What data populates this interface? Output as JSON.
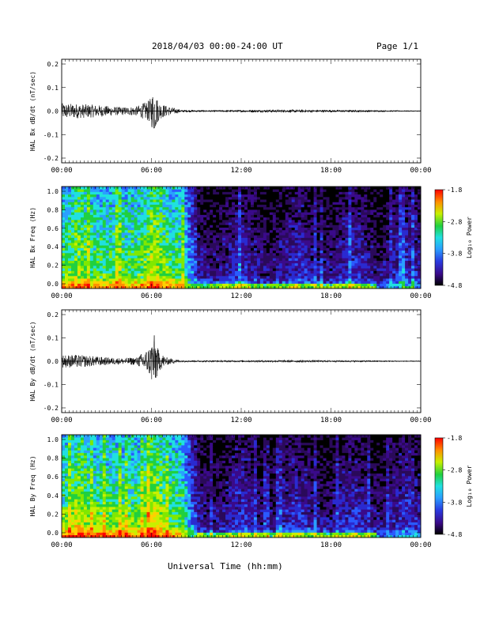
{
  "header": {
    "title": "2018/04/03  00:00-24:00 UT",
    "page": "Page 1/1"
  },
  "xaxis": {
    "label": "Universal Time (hh:mm)",
    "ticks": [
      "00:00",
      "06:00",
      "12:00",
      "18:00",
      "00:00"
    ],
    "range_hours": [
      0,
      24
    ]
  },
  "colorbar": {
    "label": "Log₁₀ Power",
    "ticks": [
      "-1.8",
      "-2.8",
      "-3.8",
      "-4.8"
    ],
    "range": [
      -4.8,
      -1.8
    ]
  },
  "chart_data": [
    {
      "type": "line",
      "ylabel": "HAL Bx dB/dt (nT/sec)",
      "yticks": [
        "0.2",
        "0.1",
        "0.0",
        "-0.1",
        "-0.2"
      ],
      "ylim": [
        -0.2,
        0.2
      ],
      "x_hours": [
        0,
        1,
        2,
        3,
        4,
        5,
        6,
        7,
        8,
        10,
        12,
        14,
        16,
        18,
        20,
        22,
        24
      ],
      "envelope": [
        0.03,
        0.028,
        0.025,
        0.02,
        0.015,
        0.018,
        0.045,
        0.02,
        0.005,
        0.004,
        0.005,
        0.006,
        0.006,
        0.005,
        0.005,
        0.003,
        0.002
      ]
    },
    {
      "type": "heatmap",
      "ylabel": "HAL Bx Freq (Hz)",
      "yticks": [
        "1.0",
        "0.8",
        "0.6",
        "0.4",
        "0.2",
        "0.0"
      ],
      "ylim": [
        0,
        1.0
      ]
    },
    {
      "type": "line",
      "ylabel": "HAL By dB/dt (nT/sec)",
      "yticks": [
        "0.2",
        "0.1",
        "0.0",
        "-0.1",
        "-0.2"
      ],
      "ylim": [
        -0.2,
        0.2
      ],
      "x_hours": [
        0,
        1,
        2,
        3,
        4,
        5,
        6,
        7,
        8,
        10,
        12,
        14,
        16,
        18,
        20,
        22,
        24
      ],
      "envelope": [
        0.025,
        0.025,
        0.02,
        0.015,
        0.012,
        0.015,
        0.06,
        0.015,
        0.004,
        0.004,
        0.004,
        0.005,
        0.005,
        0.004,
        0.004,
        0.003,
        0.002
      ]
    },
    {
      "type": "heatmap",
      "ylabel": "HAL By Freq (Hz)",
      "yticks": [
        "1.0",
        "0.8",
        "0.6",
        "0.4",
        "0.2",
        "0.0"
      ],
      "ylim": [
        0,
        1.0
      ]
    }
  ]
}
